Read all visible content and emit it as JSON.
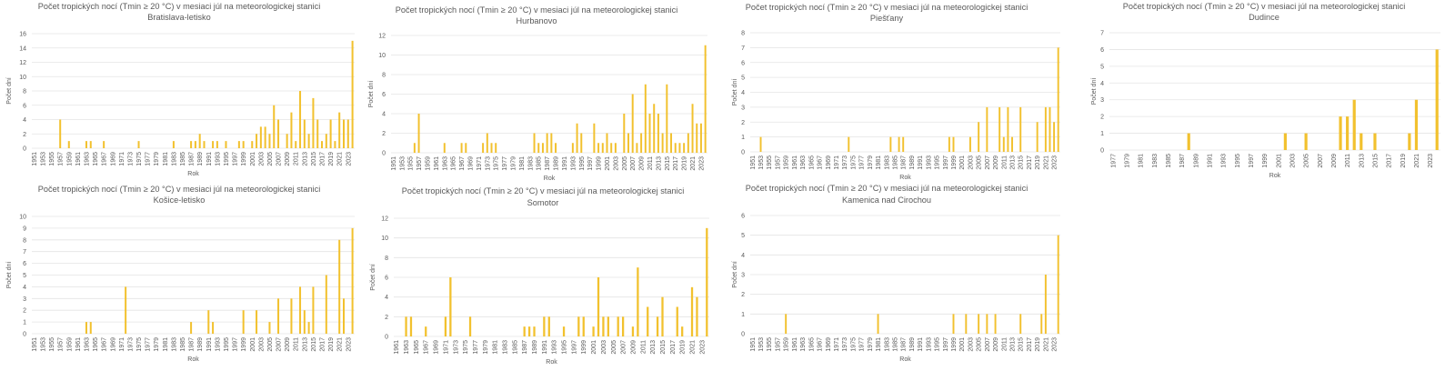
{
  "bar_color": "#F2C12E",
  "chart_data": [
    {
      "id": "bratislava",
      "type": "bar",
      "title": "Počet tropických nocí (Tmin ≥ 20 °C) v mesiaci júl na meteorologickej stanici",
      "subtitle": "Bratislava-letisko",
      "xlabel": "Rok",
      "ylabel": "Počet dní",
      "ylim": [
        0,
        16
      ],
      "yticks": [
        0,
        2,
        4,
        6,
        8,
        10,
        12,
        14,
        16
      ],
      "year_start": 1951,
      "year_end": 2024,
      "grid": true,
      "values": {
        "1957": 4,
        "1959": 1,
        "1963": 1,
        "1964": 1,
        "1967": 1,
        "1975": 1,
        "1983": 1,
        "1987": 1,
        "1988": 1,
        "1989": 2,
        "1990": 1,
        "1992": 1,
        "1993": 1,
        "1995": 1,
        "1998": 1,
        "1999": 1,
        "2001": 1,
        "2002": 2,
        "2003": 3,
        "2004": 3,
        "2005": 2,
        "2006": 6,
        "2007": 4,
        "2009": 2,
        "2010": 5,
        "2011": 1,
        "2012": 8,
        "2013": 4,
        "2014": 2,
        "2015": 7,
        "2016": 4,
        "2017": 1,
        "2018": 2,
        "2019": 4,
        "2020": 1,
        "2021": 5,
        "2022": 4,
        "2023": 4,
        "2024": 15
      }
    },
    {
      "id": "hurbanovo",
      "type": "bar",
      "title": "Počet tropických nocí (Tmin ≥ 20 °C) v mesiaci júl na meteorologickej stanici",
      "subtitle": "Hurbanovo",
      "xlabel": "Rok",
      "ylabel": "Počet dní",
      "ylim": [
        0,
        12
      ],
      "yticks": [
        0,
        2,
        4,
        6,
        8,
        10,
        12
      ],
      "year_start": 1951,
      "year_end": 2024,
      "grid": true,
      "values": {
        "1956": 1,
        "1957": 4,
        "1963": 1,
        "1967": 1,
        "1968": 1,
        "1972": 1,
        "1973": 2,
        "1974": 1,
        "1975": 1,
        "1984": 2,
        "1985": 1,
        "1986": 1,
        "1987": 2,
        "1988": 2,
        "1989": 1,
        "1993": 1,
        "1994": 3,
        "1995": 2,
        "1998": 3,
        "1999": 1,
        "2000": 1,
        "2001": 2,
        "2002": 1,
        "2003": 1,
        "2005": 4,
        "2006": 2,
        "2007": 6,
        "2008": 1,
        "2009": 2,
        "2010": 7,
        "2011": 4,
        "2012": 5,
        "2013": 4,
        "2014": 2,
        "2015": 7,
        "2016": 2,
        "2017": 1,
        "2018": 1,
        "2019": 1,
        "2020": 2,
        "2021": 5,
        "2022": 3,
        "2023": 3,
        "2024": 11
      }
    },
    {
      "id": "piestany",
      "type": "bar",
      "title": "Počet tropických nocí (Tmin ≥ 20 °C) v mesiaci júl na meteorologickej stanici",
      "subtitle": "Piešťany",
      "xlabel": "Rok",
      "ylabel": "Počet dní",
      "ylim": [
        0,
        8
      ],
      "yticks": [
        0,
        1,
        2,
        3,
        4,
        5,
        6,
        7,
        8
      ],
      "year_start": 1951,
      "year_end": 2024,
      "grid": true,
      "values": {
        "1953": 1,
        "1974": 1,
        "1984": 1,
        "1986": 1,
        "1987": 1,
        "1998": 1,
        "1999": 1,
        "2003": 1,
        "2005": 2,
        "2007": 3,
        "2010": 3,
        "2011": 1,
        "2012": 3,
        "2013": 1,
        "2015": 3,
        "2019": 2,
        "2021": 3,
        "2022": 3,
        "2023": 2,
        "2024": 7
      }
    },
    {
      "id": "dudince",
      "type": "bar",
      "title": "Počet tropických nocí (Tmin ≥ 20 °C) v mesiaci júl na meteorologickej stanici",
      "subtitle": "Dudince",
      "xlabel": "Rok",
      "ylabel": "Počet dní",
      "ylim": [
        0,
        7
      ],
      "yticks": [
        0,
        1,
        2,
        3,
        4,
        5,
        6,
        7
      ],
      "year_start": 1977,
      "year_end": 2024,
      "grid": true,
      "values": {
        "1988": 1,
        "2002": 1,
        "2005": 1,
        "2010": 2,
        "2011": 2,
        "2012": 3,
        "2013": 1,
        "2015": 1,
        "2020": 1,
        "2021": 3,
        "2024": 6
      }
    },
    {
      "id": "kosice",
      "type": "bar",
      "title": "Počet tropických nocí (Tmin ≥ 20 °C) v mesiaci júl na meteorologickej stanici",
      "subtitle": "Košice-letisko",
      "xlabel": "Rok",
      "ylabel": "Počet dní",
      "ylim": [
        0,
        10
      ],
      "yticks": [
        0,
        1,
        2,
        3,
        4,
        5,
        6,
        7,
        8,
        9,
        10
      ],
      "year_start": 1951,
      "year_end": 2024,
      "grid": true,
      "values": {
        "1963": 1,
        "1964": 1,
        "1972": 4,
        "1987": 1,
        "1991": 2,
        "1992": 1,
        "1999": 2,
        "2002": 2,
        "2005": 1,
        "2007": 3,
        "2010": 3,
        "2012": 4,
        "2013": 2,
        "2014": 1,
        "2015": 4,
        "2018": 5,
        "2021": 8,
        "2022": 3,
        "2024": 9
      }
    },
    {
      "id": "somotor",
      "type": "bar",
      "title": "Počet tropických nocí (Tmin ≥ 20 °C) v mesiaci júl na meteorologickej stanici",
      "subtitle": "Somotor",
      "xlabel": "Rok",
      "ylabel": "Počet dní",
      "ylim": [
        0,
        12
      ],
      "yticks": [
        0,
        2,
        4,
        6,
        8,
        10,
        12
      ],
      "year_start": 1961,
      "year_end": 2024,
      "grid": true,
      "values": {
        "1963": 2,
        "1964": 2,
        "1967": 1,
        "1971": 2,
        "1972": 6,
        "1976": 2,
        "1987": 1,
        "1988": 1,
        "1989": 1,
        "1991": 2,
        "1992": 2,
        "1995": 1,
        "1998": 2,
        "1999": 2,
        "2001": 1,
        "2002": 6,
        "2003": 2,
        "2004": 2,
        "2006": 2,
        "2007": 2,
        "2009": 1,
        "2010": 7,
        "2012": 3,
        "2014": 2,
        "2015": 4,
        "2018": 3,
        "2019": 1,
        "2021": 5,
        "2022": 4,
        "2024": 11
      }
    },
    {
      "id": "kamenica",
      "type": "bar",
      "title": "Počet tropických nocí (Tmin ≥ 20 °C) v mesiaci júl na meteorologickej stanici",
      "subtitle": "Kamenica nad Cirochou",
      "xlabel": "Rok",
      "ylabel": "Počet dní",
      "ylim": [
        0,
        6
      ],
      "yticks": [
        0,
        1,
        2,
        3,
        4,
        5,
        6
      ],
      "year_start": 1951,
      "year_end": 2024,
      "grid": true,
      "values": {
        "1959": 1,
        "1981": 1,
        "1999": 1,
        "2002": 1,
        "2005": 1,
        "2007": 1,
        "2009": 1,
        "2015": 1,
        "2020": 1,
        "2021": 3,
        "2024": 5
      }
    }
  ]
}
